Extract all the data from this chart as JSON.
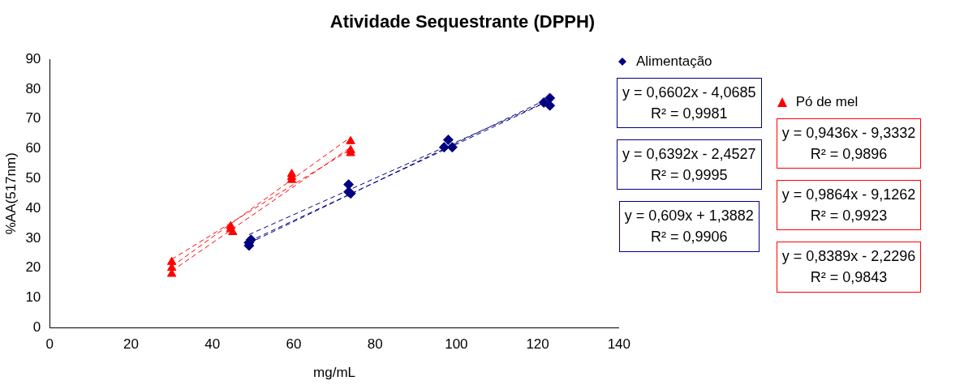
{
  "chart_data": {
    "type": "scatter",
    "title": "Atividade Sequestrante (DPPH)",
    "xlabel": "mg/mL",
    "ylabel": "%AA(517nm)",
    "xlim": [
      0,
      140
    ],
    "xticks": [
      0,
      20,
      40,
      60,
      80,
      100,
      120,
      140
    ],
    "ylim": [
      0,
      90
    ],
    "yticks": [
      0,
      10,
      20,
      30,
      40,
      50,
      60,
      70,
      80,
      90
    ],
    "grid": false,
    "legend": "right",
    "series": [
      {
        "name": "Alimentação",
        "marker": "diamond",
        "color": "#000080",
        "x": [
          49,
          49.5,
          49,
          73.5,
          73.5,
          74,
          98,
          97,
          99,
          121.5,
          123,
          123
        ],
        "values": [
          27.5,
          29.5,
          28.5,
          48,
          45.5,
          45,
          63,
          60.5,
          60.5,
          75.5,
          77,
          74.5
        ]
      },
      {
        "name": "Pó de mel",
        "marker": "triangle",
        "color": "#ff0000",
        "x": [
          30,
          30,
          30,
          44.5,
          44.5,
          45,
          59.5,
          59.5,
          59.5,
          74,
          74,
          74
        ],
        "values": [
          22,
          20,
          18,
          34,
          33,
          32,
          51.5,
          50.5,
          49.5,
          62.5,
          59.5,
          58.5
        ]
      },
      {
        "type": "line",
        "line_style": "dashed",
        "color": "#000080",
        "x": [
          49,
          123
        ],
        "values": [
          28.3,
          77.1
        ]
      },
      {
        "type": "line",
        "line_style": "dashed",
        "color": "#000080",
        "x": [
          49,
          123
        ],
        "values": [
          28.9,
          76.2
        ]
      },
      {
        "type": "line",
        "line_style": "dashed",
        "color": "#000080",
        "x": [
          49,
          123
        ],
        "values": [
          31.2,
          76.3
        ]
      },
      {
        "type": "line",
        "line_style": "dashed",
        "color": "#ff0000",
        "x": [
          30,
          74
        ],
        "values": [
          19,
          60.5
        ]
      },
      {
        "type": "line",
        "line_style": "dashed",
        "color": "#ff0000",
        "x": [
          30,
          74
        ],
        "values": [
          20.5,
          63.9
        ]
      },
      {
        "type": "line",
        "line_style": "dashed",
        "color": "#ff0000",
        "x": [
          30,
          74
        ],
        "values": [
          22.9,
          59.8
        ]
      }
    ],
    "annotations": [
      "y = 0,6602x - 4,0685\nR² = 0,9981",
      "y = 0,6392x - 2,4527\nR² = 0,9995",
      "y = 0,609x + 1,3882\nR² = 0,9906",
      "y = 0,9436x - 9,3332\nR² = 0,9896",
      "y = 0,9864x - 9,1262\nR² = 0,9923",
      "y = 0,8389x - 2,2296\nR² = 0,9843"
    ]
  }
}
